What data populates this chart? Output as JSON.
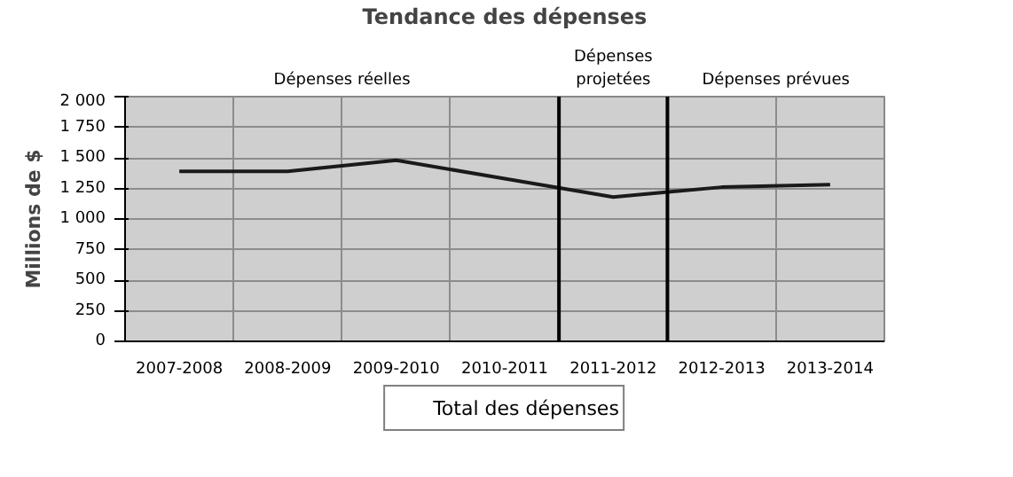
{
  "chart_data": {
    "type": "line",
    "title": "Tendance des dépenses",
    "ylabel": "Millions de $",
    "categories": [
      "2007-2008",
      "2008-2009",
      "2009-2010",
      "2010-2011",
      "2011-2012",
      "2012-2013",
      "2013-2014"
    ],
    "series": [
      {
        "name": "Total des dépenses",
        "color": "#1a1a1a",
        "values": [
          1390,
          1390,
          1480,
          1330,
          1180,
          1260,
          1280
        ]
      }
    ],
    "ylim": [
      0,
      2000
    ],
    "yticks": [
      {
        "value": 0,
        "label": "0"
      },
      {
        "value": 250,
        "label": "250"
      },
      {
        "value": 500,
        "label": "500"
      },
      {
        "value": 750,
        "label": "750"
      },
      {
        "value": 1000,
        "label": "1 000"
      },
      {
        "value": 1250,
        "label": "1 250"
      },
      {
        "value": 1500,
        "label": "1 500"
      },
      {
        "value": 1750,
        "label": "1 750"
      },
      {
        "value": 2000,
        "label": "2 000"
      }
    ],
    "annotations": [
      "Dépenses réelles",
      "Dépenses\nprojetées",
      "Dépenses prévues"
    ],
    "grid": true,
    "legend": "bottom",
    "line_style": "solid"
  }
}
